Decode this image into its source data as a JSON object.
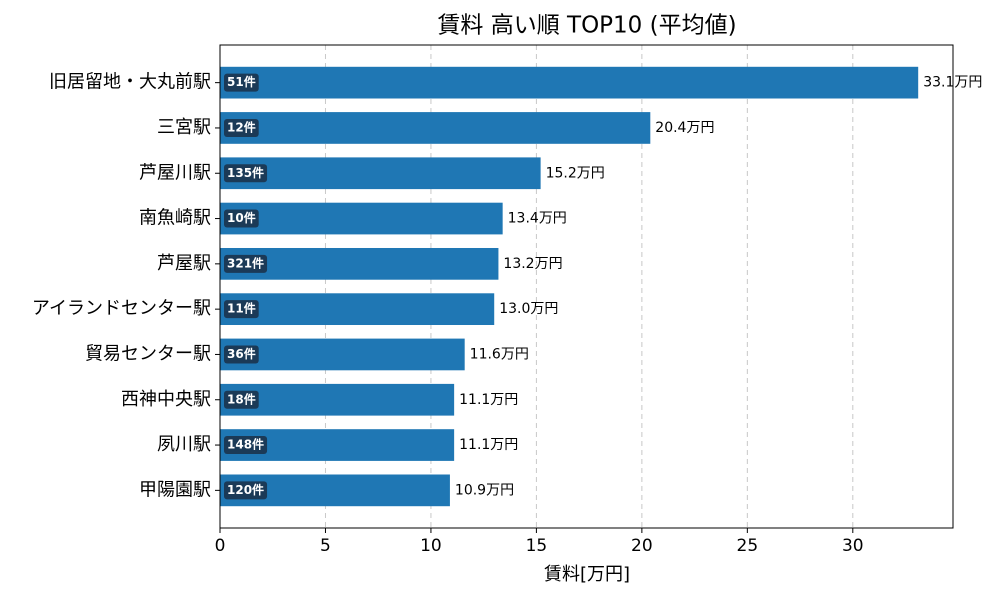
{
  "chart_data": {
    "type": "barh",
    "title": "賃料 高い順 TOP10 (平均値)",
    "x_label": "賃料[万円]",
    "categories": [
      "旧居留地・大丸前駅",
      "三宮駅",
      "芦屋川駅",
      "南魚崎駅",
      "芦屋駅",
      "アイランドセンター駅",
      "貿易センター駅",
      "西神中央駅",
      "夙川駅",
      "甲陽園駅"
    ],
    "values": [
      33.1,
      20.4,
      15.2,
      13.4,
      13.2,
      13.0,
      11.6,
      11.1,
      11.1,
      10.9
    ],
    "value_labels": [
      "33.1万円",
      "20.4万円",
      "15.2万円",
      "13.4万円",
      "13.2万円",
      "13.0万円",
      "11.6万円",
      "11.1万円",
      "11.1万円",
      "10.9万円"
    ],
    "count_labels": [
      "51件",
      "12件",
      "135件",
      "10件",
      "321件",
      "11件",
      "36件",
      "18件",
      "148件",
      "120件"
    ],
    "color": "#1f77b4",
    "badge_color": "#1b3a57",
    "xlim": [
      0,
      34.75
    ],
    "xticks": [
      0,
      5,
      10,
      15,
      20,
      25,
      30
    ],
    "grid": true
  }
}
